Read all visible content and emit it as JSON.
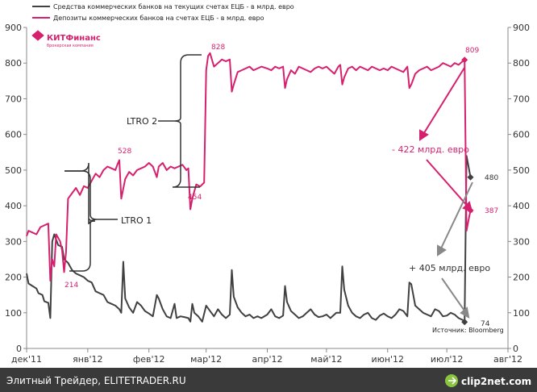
{
  "chart_data": {
    "type": "line",
    "y_range": [
      0,
      900
    ],
    "y_ticks": [
      "0",
      "100",
      "200",
      "300",
      "400",
      "500",
      "600",
      "700",
      "800",
      "900"
    ],
    "x_range": [
      "2011-12-01",
      "2012-08-01"
    ],
    "x_ticks": [
      {
        "date": "2011-12-01",
        "label": "дек'11"
      },
      {
        "date": "2012-01-01",
        "label": "янв'12"
      },
      {
        "date": "2012-02-01",
        "label": "фев'12"
      },
      {
        "date": "2012-03-01",
        "label": "мар'12"
      },
      {
        "date": "2012-04-01",
        "label": "апр'12"
      },
      {
        "date": "2012-05-01",
        "label": "май'12"
      },
      {
        "date": "2012-06-01",
        "label": "июн'12"
      },
      {
        "date": "2012-07-01",
        "label": "июл'12"
      },
      {
        "date": "2012-08-01",
        "label": "авг'12"
      }
    ],
    "grid": false,
    "legend_position": "top-left",
    "series": [
      {
        "name": "Средства коммерческих банков на текущих счетах ЕЦБ - в млрд. евро",
        "color": "#404040",
        "points": [
          [
            "2011-12-01",
            210
          ],
          [
            "2011-12-02",
            182
          ],
          [
            "2011-12-04",
            175
          ],
          [
            "2011-12-06",
            168
          ],
          [
            "2011-12-07",
            155
          ],
          [
            "2011-12-09",
            150
          ],
          [
            "2011-12-10",
            132
          ],
          [
            "2011-12-12",
            128
          ],
          [
            "2011-12-13",
            85
          ],
          [
            "2011-12-14",
            300
          ],
          [
            "2011-12-15",
            320
          ],
          [
            "2011-12-17",
            290
          ],
          [
            "2011-12-19",
            285
          ],
          [
            "2011-12-20",
            250
          ],
          [
            "2011-12-22",
            240
          ],
          [
            "2011-12-24",
            220
          ],
          [
            "2011-12-26",
            210
          ],
          [
            "2011-12-28",
            205
          ],
          [
            "2011-12-30",
            200
          ],
          [
            "2012-01-01",
            190
          ],
          [
            "2012-01-03",
            185
          ],
          [
            "2012-01-05",
            160
          ],
          [
            "2012-01-07",
            155
          ],
          [
            "2012-01-09",
            150
          ],
          [
            "2012-01-11",
            130
          ],
          [
            "2012-01-13",
            125
          ],
          [
            "2012-01-15",
            120
          ],
          [
            "2012-01-17",
            110
          ],
          [
            "2012-01-18",
            100
          ],
          [
            "2012-01-19",
            243
          ],
          [
            "2012-01-20",
            140
          ],
          [
            "2012-01-22",
            115
          ],
          [
            "2012-01-24",
            100
          ],
          [
            "2012-01-26",
            130
          ],
          [
            "2012-01-28",
            120
          ],
          [
            "2012-01-30",
            105
          ],
          [
            "2012-02-01",
            98
          ],
          [
            "2012-02-03",
            90
          ],
          [
            "2012-02-05",
            150
          ],
          [
            "2012-02-06",
            140
          ],
          [
            "2012-02-08",
            110
          ],
          [
            "2012-02-10",
            90
          ],
          [
            "2012-02-12",
            85
          ],
          [
            "2012-02-14",
            125
          ],
          [
            "2012-02-15",
            85
          ],
          [
            "2012-02-17",
            90
          ],
          [
            "2012-02-19",
            88
          ],
          [
            "2012-02-21",
            85
          ],
          [
            "2012-02-22",
            75
          ],
          [
            "2012-02-23",
            125
          ],
          [
            "2012-02-24",
            100
          ],
          [
            "2012-02-26",
            90
          ],
          [
            "2012-02-28",
            75
          ],
          [
            "2012-03-01",
            120
          ],
          [
            "2012-03-03",
            105
          ],
          [
            "2012-03-05",
            90
          ],
          [
            "2012-03-07",
            110
          ],
          [
            "2012-03-09",
            95
          ],
          [
            "2012-03-11",
            85
          ],
          [
            "2012-03-13",
            95
          ],
          [
            "2012-03-14",
            220
          ],
          [
            "2012-03-15",
            145
          ],
          [
            "2012-03-17",
            115
          ],
          [
            "2012-03-19",
            100
          ],
          [
            "2012-03-21",
            90
          ],
          [
            "2012-03-23",
            95
          ],
          [
            "2012-03-25",
            85
          ],
          [
            "2012-03-27",
            90
          ],
          [
            "2012-03-29",
            85
          ],
          [
            "2012-04-01",
            95
          ],
          [
            "2012-04-03",
            110
          ],
          [
            "2012-04-05",
            90
          ],
          [
            "2012-04-07",
            85
          ],
          [
            "2012-04-09",
            92
          ],
          [
            "2012-04-10",
            175
          ],
          [
            "2012-04-11",
            130
          ],
          [
            "2012-04-13",
            105
          ],
          [
            "2012-04-15",
            95
          ],
          [
            "2012-04-17",
            85
          ],
          [
            "2012-04-19",
            90
          ],
          [
            "2012-04-21",
            100
          ],
          [
            "2012-04-23",
            110
          ],
          [
            "2012-04-25",
            95
          ],
          [
            "2012-04-27",
            88
          ],
          [
            "2012-04-29",
            90
          ],
          [
            "2012-05-01",
            95
          ],
          [
            "2012-05-03",
            85
          ],
          [
            "2012-05-06",
            100
          ],
          [
            "2012-05-08",
            100
          ],
          [
            "2012-05-09",
            230
          ],
          [
            "2012-05-10",
            165
          ],
          [
            "2012-05-12",
            120
          ],
          [
            "2012-05-14",
            100
          ],
          [
            "2012-05-16",
            90
          ],
          [
            "2012-05-18",
            85
          ],
          [
            "2012-05-20",
            95
          ],
          [
            "2012-05-22",
            100
          ],
          [
            "2012-05-24",
            85
          ],
          [
            "2012-05-26",
            80
          ],
          [
            "2012-05-28",
            92
          ],
          [
            "2012-05-30",
            98
          ],
          [
            "2012-06-01",
            90
          ],
          [
            "2012-06-03",
            85
          ],
          [
            "2012-06-05",
            95
          ],
          [
            "2012-06-07",
            110
          ],
          [
            "2012-06-09",
            105
          ],
          [
            "2012-06-11",
            90
          ],
          [
            "2012-06-12",
            185
          ],
          [
            "2012-06-13",
            180
          ],
          [
            "2012-06-15",
            120
          ],
          [
            "2012-06-17",
            110
          ],
          [
            "2012-06-19",
            100
          ],
          [
            "2012-06-21",
            95
          ],
          [
            "2012-06-23",
            90
          ],
          [
            "2012-06-25",
            110
          ],
          [
            "2012-06-27",
            105
          ],
          [
            "2012-06-29",
            90
          ],
          [
            "2012-07-01",
            92
          ],
          [
            "2012-07-03",
            100
          ],
          [
            "2012-07-05",
            95
          ],
          [
            "2012-07-07",
            85
          ],
          [
            "2012-07-09",
            80
          ],
          [
            "2012-07-10",
            74
          ],
          [
            "2012-07-11",
            540
          ],
          [
            "2012-07-12",
            510
          ],
          [
            "2012-07-13",
            480
          ]
        ]
      },
      {
        "name": "Депозиты коммерческих банков на счетах ЕЦБ - в млрд. евро",
        "color": "#d6206e",
        "points": [
          [
            "2011-12-01",
            315
          ],
          [
            "2011-12-02",
            330
          ],
          [
            "2011-12-04",
            325
          ],
          [
            "2011-12-06",
            320
          ],
          [
            "2011-12-08",
            340
          ],
          [
            "2011-12-10",
            345
          ],
          [
            "2011-12-12",
            350
          ],
          [
            "2011-12-13",
            190
          ],
          [
            "2011-12-14",
            250
          ],
          [
            "2011-12-15",
            230
          ],
          [
            "2011-12-16",
            320
          ],
          [
            "2011-12-18",
            300
          ],
          [
            "2011-12-19",
            275
          ],
          [
            "2011-12-20",
            214
          ],
          [
            "2011-12-21",
            270
          ],
          [
            "2011-12-22",
            420
          ],
          [
            "2011-12-24",
            435
          ],
          [
            "2011-12-26",
            450
          ],
          [
            "2011-12-28",
            430
          ],
          [
            "2011-12-30",
            455
          ],
          [
            "2012-01-01",
            450
          ],
          [
            "2012-01-03",
            470
          ],
          [
            "2012-01-05",
            490
          ],
          [
            "2012-01-07",
            480
          ],
          [
            "2012-01-09",
            500
          ],
          [
            "2012-01-11",
            510
          ],
          [
            "2012-01-13",
            505
          ],
          [
            "2012-01-15",
            500
          ],
          [
            "2012-01-16",
            515
          ],
          [
            "2012-01-17",
            528
          ],
          [
            "2012-01-18",
            420
          ],
          [
            "2012-01-20",
            475
          ],
          [
            "2012-01-22",
            495
          ],
          [
            "2012-01-24",
            485
          ],
          [
            "2012-01-26",
            500
          ],
          [
            "2012-01-28",
            505
          ],
          [
            "2012-01-30",
            510
          ],
          [
            "2012-02-01",
            520
          ],
          [
            "2012-02-03",
            510
          ],
          [
            "2012-02-05",
            480
          ],
          [
            "2012-02-06",
            510
          ],
          [
            "2012-02-08",
            520
          ],
          [
            "2012-02-10",
            500
          ],
          [
            "2012-02-12",
            510
          ],
          [
            "2012-02-14",
            505
          ],
          [
            "2012-02-16",
            510
          ],
          [
            "2012-02-18",
            515
          ],
          [
            "2012-02-20",
            500
          ],
          [
            "2012-02-21",
            505
          ],
          [
            "2012-02-22",
            390
          ],
          [
            "2012-02-23",
            420
          ],
          [
            "2012-02-25",
            460
          ],
          [
            "2012-02-27",
            454
          ],
          [
            "2012-02-29",
            465
          ],
          [
            "2012-03-01",
            780
          ],
          [
            "2012-03-02",
            820
          ],
          [
            "2012-03-03",
            828
          ],
          [
            "2012-03-05",
            790
          ],
          [
            "2012-03-07",
            800
          ],
          [
            "2012-03-09",
            810
          ],
          [
            "2012-03-11",
            805
          ],
          [
            "2012-03-13",
            810
          ],
          [
            "2012-03-14",
            720
          ],
          [
            "2012-03-15",
            740
          ],
          [
            "2012-03-17",
            775
          ],
          [
            "2012-03-19",
            780
          ],
          [
            "2012-03-21",
            785
          ],
          [
            "2012-03-23",
            790
          ],
          [
            "2012-03-25",
            780
          ],
          [
            "2012-03-27",
            785
          ],
          [
            "2012-03-29",
            790
          ],
          [
            "2012-04-01",
            785
          ],
          [
            "2012-04-03",
            780
          ],
          [
            "2012-04-05",
            790
          ],
          [
            "2012-04-07",
            785
          ],
          [
            "2012-04-09",
            790
          ],
          [
            "2012-04-10",
            730
          ],
          [
            "2012-04-11",
            755
          ],
          [
            "2012-04-13",
            780
          ],
          [
            "2012-04-15",
            770
          ],
          [
            "2012-04-17",
            790
          ],
          [
            "2012-04-19",
            785
          ],
          [
            "2012-04-21",
            780
          ],
          [
            "2012-04-23",
            775
          ],
          [
            "2012-04-25",
            785
          ],
          [
            "2012-04-27",
            790
          ],
          [
            "2012-04-29",
            785
          ],
          [
            "2012-05-01",
            790
          ],
          [
            "2012-05-03",
            780
          ],
          [
            "2012-05-05",
            770
          ],
          [
            "2012-05-07",
            790
          ],
          [
            "2012-05-08",
            795
          ],
          [
            "2012-05-09",
            740
          ],
          [
            "2012-05-10",
            760
          ],
          [
            "2012-05-12",
            785
          ],
          [
            "2012-05-14",
            790
          ],
          [
            "2012-05-16",
            780
          ],
          [
            "2012-05-18",
            790
          ],
          [
            "2012-05-20",
            785
          ],
          [
            "2012-05-22",
            780
          ],
          [
            "2012-05-24",
            790
          ],
          [
            "2012-05-26",
            785
          ],
          [
            "2012-05-28",
            780
          ],
          [
            "2012-05-30",
            785
          ],
          [
            "2012-06-01",
            780
          ],
          [
            "2012-06-03",
            790
          ],
          [
            "2012-06-05",
            785
          ],
          [
            "2012-06-07",
            780
          ],
          [
            "2012-06-09",
            775
          ],
          [
            "2012-06-11",
            790
          ],
          [
            "2012-06-12",
            730
          ],
          [
            "2012-06-13",
            740
          ],
          [
            "2012-06-15",
            770
          ],
          [
            "2012-06-17",
            780
          ],
          [
            "2012-06-19",
            785
          ],
          [
            "2012-06-21",
            790
          ],
          [
            "2012-06-23",
            780
          ],
          [
            "2012-06-25",
            785
          ],
          [
            "2012-06-27",
            790
          ],
          [
            "2012-06-29",
            800
          ],
          [
            "2012-07-01",
            795
          ],
          [
            "2012-07-03",
            790
          ],
          [
            "2012-07-05",
            800
          ],
          [
            "2012-07-07",
            795
          ],
          [
            "2012-07-09",
            805
          ],
          [
            "2012-07-10",
            809
          ],
          [
            "2012-07-11",
            330
          ],
          [
            "2012-07-12",
            360
          ],
          [
            "2012-07-13",
            387
          ]
        ]
      }
    ],
    "data_labels": [
      {
        "text": "828",
        "series": 1
      },
      {
        "text": "528",
        "series": 1
      },
      {
        "text": "454",
        "series": 1
      },
      {
        "text": "214",
        "series": 1
      },
      {
        "text": "809",
        "series": 1
      },
      {
        "text": "387",
        "series": 1
      },
      {
        "text": "480",
        "series": 0
      },
      {
        "text": "74",
        "series": 0
      }
    ],
    "annotations": {
      "ltro2": "LTRO 2",
      "ltro1": "LTRO 1",
      "deposit_change": "- 422 млрд. евро",
      "current_change": "+ 405 млрд. евро",
      "source": "Источник: Bloomberg"
    }
  },
  "brand_logo": "КИТФинанс",
  "brand_tagline": "брокерская компания",
  "footer": {
    "left_text": "Элитный Трейдер, ELITETRADER.RU",
    "right_logo": "clip2net.com"
  },
  "colors": {
    "current_line": "#404040",
    "deposit_line": "#d6206e",
    "footer_bg": "#3a3a3a",
    "arrow_gray": "#888888"
  }
}
